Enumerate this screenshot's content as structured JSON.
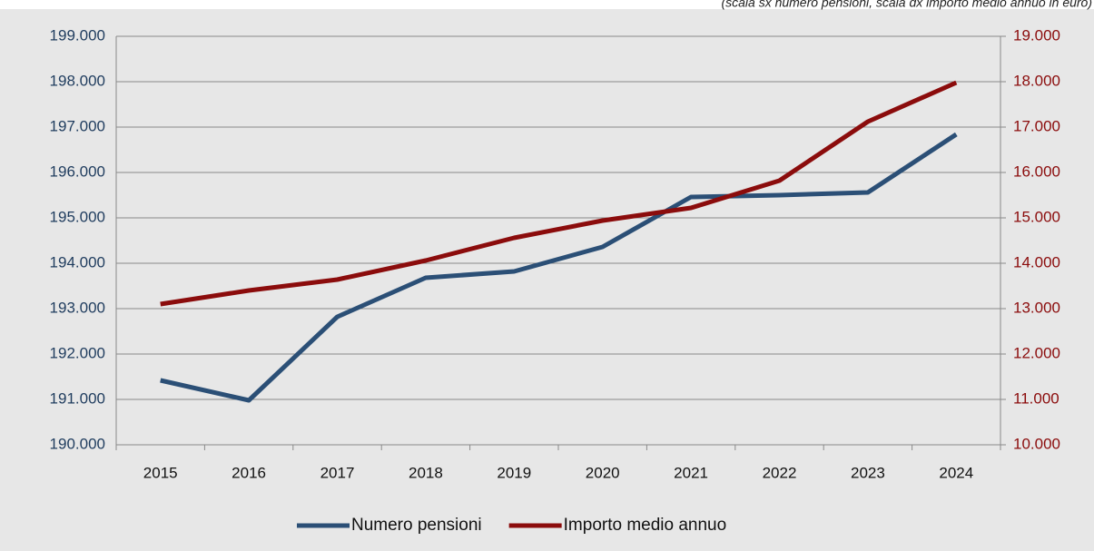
{
  "chart_data": {
    "type": "line",
    "subtitle": "(scala sx numero pensioni, scala dx importo medio annuo in euro)",
    "categories": [
      "2015",
      "2016",
      "2017",
      "2018",
      "2019",
      "2020",
      "2021",
      "2022",
      "2023",
      "2024"
    ],
    "series": [
      {
        "name": "Numero pensioni",
        "color": "#2b4f76",
        "values": [
          191420,
          190980,
          192820,
          193680,
          193820,
          194360,
          195460,
          195500,
          195560,
          196840
        ]
      },
      {
        "name": "Importo medio annuo",
        "color": "#8b0c0c",
        "axis": "y2",
        "values": [
          13100,
          13400,
          13640,
          14060,
          14560,
          14940,
          15220,
          15820,
          17120,
          17980
        ]
      }
    ],
    "ylim": [
      190000,
      199000
    ],
    "yticks": [
      {
        "value": 190000,
        "label": "190.000"
      },
      {
        "value": 191000,
        "label": "191.000"
      },
      {
        "value": 192000,
        "label": "192.000"
      },
      {
        "value": 193000,
        "label": "193.000"
      },
      {
        "value": 194000,
        "label": "194.000"
      },
      {
        "value": 195000,
        "label": "195.000"
      },
      {
        "value": 196000,
        "label": "196.000"
      },
      {
        "value": 197000,
        "label": "197.000"
      },
      {
        "value": 198000,
        "label": "198.000"
      },
      {
        "value": 199000,
        "label": "199.000"
      }
    ],
    "y2lim": [
      10000,
      19000
    ],
    "y2ticks": [
      {
        "value": 10000,
        "label": "10.000"
      },
      {
        "value": 11000,
        "label": "11.000"
      },
      {
        "value": 12000,
        "label": "12.000"
      },
      {
        "value": 13000,
        "label": "13.000"
      },
      {
        "value": 14000,
        "label": "14.000"
      },
      {
        "value": 15000,
        "label": "15.000"
      },
      {
        "value": 16000,
        "label": "16.000"
      },
      {
        "value": 17000,
        "label": "17.000"
      },
      {
        "value": 18000,
        "label": "18.000"
      },
      {
        "value": 19000,
        "label": "19.000"
      }
    ],
    "grid": true,
    "legend": "bottom"
  }
}
